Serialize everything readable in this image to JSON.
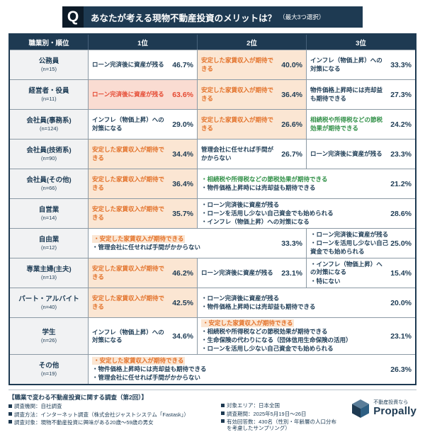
{
  "header": {
    "q_mark": "Q",
    "title": "あなたが考える現物不動産投資のメリットは？",
    "subtitle": "（最大3つ選択）"
  },
  "chart_data": {
    "type": "table",
    "title": "あなたが考える現物不動産投資のメリットは？（最大3つ選択）",
    "col_headers": [
      "職業別・順位",
      "1位",
      "2位",
      "3位"
    ],
    "rows": [
      {
        "label": "公務員",
        "n": 15,
        "cells": [
          {
            "span": 1,
            "style": "plain",
            "pct": "46.7%",
            "items": [
              {
                "t": "ローン完済後に資産が残る"
              }
            ]
          },
          {
            "span": 1,
            "style": "orange",
            "pct": "40.0%",
            "items": [
              {
                "t": "安定した家賃収入が期待できる",
                "c": "orange"
              }
            ]
          },
          {
            "span": 1,
            "style": "plain",
            "pct": "33.3%",
            "items": [
              {
                "t": "インフレ（物価上昇）への対策になる"
              }
            ]
          }
        ]
      },
      {
        "label": "経営者・役員",
        "n": 11,
        "cells": [
          {
            "span": 1,
            "style": "red",
            "pct": "63.6%",
            "items": [
              {
                "t": "ローン完済後に資産が残る",
                "c": "red"
              }
            ]
          },
          {
            "span": 1,
            "style": "orange",
            "pct": "36.4%",
            "items": [
              {
                "t": "安定した家賃収入が期待できる",
                "c": "orange"
              }
            ]
          },
          {
            "span": 1,
            "style": "plain",
            "pct": "27.3%",
            "items": [
              {
                "t": "物件価格上昇時には売却益も期待できる"
              }
            ]
          }
        ]
      },
      {
        "label": "会社員(事務系)",
        "n": 124,
        "cells": [
          {
            "span": 1,
            "style": "plain",
            "pct": "29.0%",
            "items": [
              {
                "t": "インフレ（物価上昇）への対策になる"
              }
            ]
          },
          {
            "span": 1,
            "style": "orange",
            "pct": "26.6%",
            "items": [
              {
                "t": "安定した家賃収入が期待できる",
                "c": "orange"
              }
            ]
          },
          {
            "span": 1,
            "style": "plain",
            "pct": "24.2%",
            "items": [
              {
                "t": "相続税や所得税などの節税効果が期待できる",
                "c": "green"
              }
            ]
          }
        ]
      },
      {
        "label": "会社員(技術系)",
        "n": 90,
        "cells": [
          {
            "span": 1,
            "style": "orange",
            "pct": "34.4%",
            "items": [
              {
                "t": "安定した家賃収入が期待できる",
                "c": "orange"
              }
            ]
          },
          {
            "span": 1,
            "style": "plain",
            "pct": "26.7%",
            "items": [
              {
                "t": "管理会社に任せれば手間がかからない"
              }
            ]
          },
          {
            "span": 1,
            "style": "plain",
            "pct": "23.3%",
            "items": [
              {
                "t": "ローン完済後に資産が残る"
              }
            ]
          }
        ]
      },
      {
        "label": "会社員(その他)",
        "n": 66,
        "cells": [
          {
            "span": 1,
            "style": "orange",
            "pct": "36.4%",
            "items": [
              {
                "t": "安定した家賃収入が期待できる",
                "c": "orange"
              }
            ]
          },
          {
            "span": 2,
            "style": "plain",
            "pct": "21.2%",
            "items": [
              {
                "t": "相続税や所得税などの節税効果が期待できる",
                "c": "green"
              },
              {
                "t": "物件価格上昇時には売却益も期待できる"
              }
            ]
          }
        ]
      },
      {
        "label": "自営業",
        "n": 14,
        "cells": [
          {
            "span": 1,
            "style": "orange",
            "pct": "35.7%",
            "items": [
              {
                "t": "安定した家賃収入が期待できる",
                "c": "orange"
              }
            ]
          },
          {
            "span": 2,
            "style": "plain",
            "pct": "28.6%",
            "items": [
              {
                "t": "ローン完済後に資産が残る"
              },
              {
                "t": "ローンを活用し少ない自己資金でも始められる"
              },
              {
                "t": "インフレ（物価上昇）への対策になる"
              }
            ]
          }
        ]
      },
      {
        "label": "自由業",
        "n": 12,
        "cells": [
          {
            "span": 2,
            "style": "plain",
            "pct": "33.3%",
            "items": [
              {
                "t": "安定した家賃収入が期待できる",
                "c": "orange",
                "hl": true
              },
              {
                "t": "管理会社に任せれば手間がかからない"
              }
            ]
          },
          {
            "span": 1,
            "style": "plain",
            "pct": "25.0%",
            "items": [
              {
                "t": "ローン完済後に資産が残る"
              },
              {
                "t": "ローンを活用し少ない自己資金でも始められる"
              }
            ]
          }
        ]
      },
      {
        "label": "専業主婦(主夫)",
        "n": 13,
        "cells": [
          {
            "span": 1,
            "style": "orange",
            "pct": "46.2%",
            "items": [
              {
                "t": "安定した家賃収入が期待できる",
                "c": "orange"
              }
            ]
          },
          {
            "span": 1,
            "style": "plain",
            "pct": "23.1%",
            "items": [
              {
                "t": "ローン完済後に資産が残る"
              }
            ]
          },
          {
            "span": 1,
            "style": "plain",
            "pct": "15.4%",
            "items": [
              {
                "t": "インフレ（物価上昇）への対策になる"
              },
              {
                "t": "特にない"
              }
            ]
          }
        ]
      },
      {
        "label": "パート・アルバイト",
        "n": 40,
        "cells": [
          {
            "span": 1,
            "style": "orange",
            "pct": "42.5%",
            "items": [
              {
                "t": "安定した家賃収入が期待できる",
                "c": "orange"
              }
            ]
          },
          {
            "span": 2,
            "style": "plain",
            "pct": "20.0%",
            "items": [
              {
                "t": "ローン完済後に資産が残る"
              },
              {
                "t": "物件価格上昇時には売却益も期待できる"
              }
            ]
          }
        ]
      },
      {
        "label": "学生",
        "n": 26,
        "cells": [
          {
            "span": 1,
            "style": "plain",
            "pct": "34.6%",
            "items": [
              {
                "t": "インフレ（物価上昇）への対策になる"
              }
            ]
          },
          {
            "span": 2,
            "style": "plain",
            "pct": "23.1%",
            "items": [
              {
                "t": "安定した家賃収入が期待できる",
                "c": "orange",
                "hl": true
              },
              {
                "t": "相続税や所得税などの節税効果が期待できる"
              },
              {
                "t": "生命保険の代わりになる（団体信用生命保険の活用）"
              },
              {
                "t": "ローンを活用し少ない自己資金でも始められる"
              }
            ]
          }
        ]
      },
      {
        "label": "その他",
        "n": 19,
        "cells": [
          {
            "span": 3,
            "style": "plain",
            "pct": "26.3%",
            "items": [
              {
                "t": "安定した家賃収入が期待できる",
                "c": "orange",
                "hl": true
              },
              {
                "t": "物件価格上昇時には売却益も期待できる"
              },
              {
                "t": "管理会社に任せれば手間がかからない"
              }
            ]
          }
        ]
      }
    ]
  },
  "footer": {
    "survey_title": "【職業で変わる不動産投資に関する調査（第2回）】",
    "left_items": [
      {
        "label": "調査機関",
        "value": "自社調査"
      },
      {
        "label": "調査方法",
        "value": "インターネット調査（株式会社ジャストシステム「Fastask」）"
      },
      {
        "label": "調査対象",
        "value": "現物不動産投資に興味がある20歳～59歳の男女"
      }
    ],
    "right_items": [
      {
        "label": "対象エリア",
        "value": "日本全国"
      },
      {
        "label": "調査期間",
        "value": "2025年5月19日～26日"
      },
      {
        "label": "有効回答数",
        "value": "430名（性別・年齢層の人口分布を考慮したサンプリング）"
      }
    ],
    "logo": {
      "tagline": "不動産投資なら",
      "brand": "Propally"
    }
  },
  "colors": {
    "navy": "#1e3a52",
    "orange": "#e3722a",
    "orange_bg": "#fbe6d3",
    "red": "#e54a33",
    "red_bg": "#fadcd2",
    "green": "#2f8f46"
  }
}
